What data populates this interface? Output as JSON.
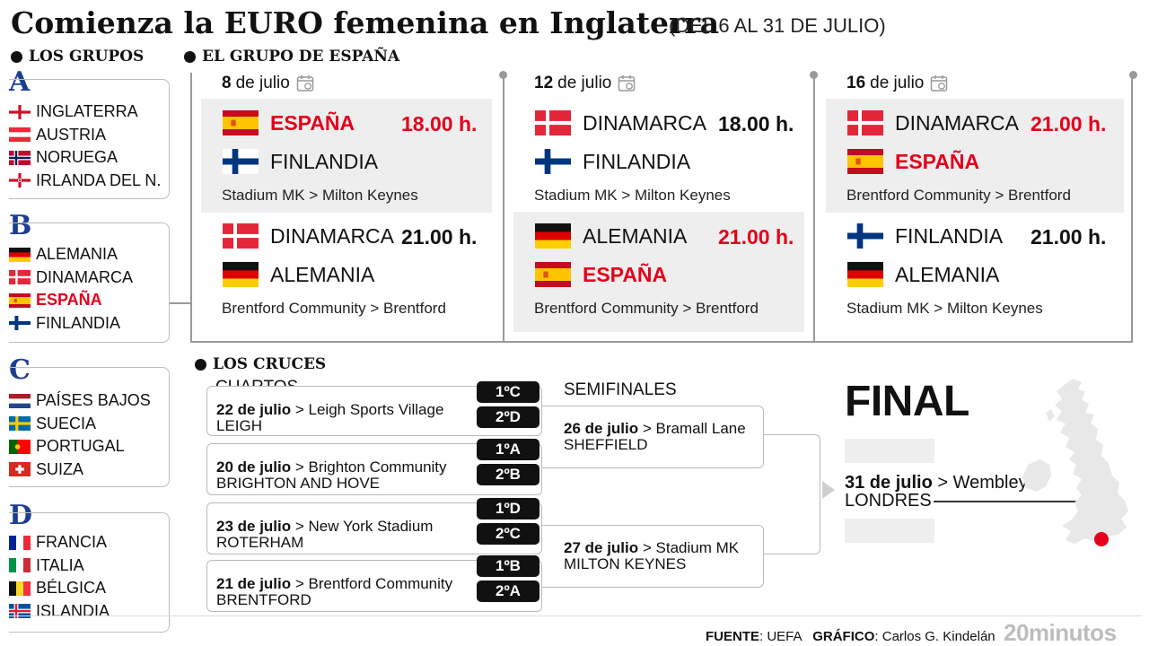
{
  "header": {
    "title": "Comienza la EURO femenina en Inglaterra",
    "subtitle": "(DEL 6 AL 31 DE JULIO)"
  },
  "groups": {
    "section_label": "LOS GRUPOS",
    "list": [
      {
        "letter": "A",
        "teams": [
          {
            "name": "INGLATERRA",
            "flag": "england"
          },
          {
            "name": "AUSTRIA",
            "flag": "austria"
          },
          {
            "name": "NORUEGA",
            "flag": "norway"
          },
          {
            "name": "IRLANDA DEL N.",
            "flag": "northern-ireland"
          }
        ]
      },
      {
        "letter": "B",
        "teams": [
          {
            "name": "ALEMANIA",
            "flag": "germany"
          },
          {
            "name": "DINAMARCA",
            "flag": "denmark"
          },
          {
            "name": "ESPAÑA",
            "flag": "spain",
            "highlight": true
          },
          {
            "name": "FINLANDIA",
            "flag": "finland"
          }
        ]
      },
      {
        "letter": "C",
        "teams": [
          {
            "name": "PAÍSES BAJOS",
            "flag": "netherlands"
          },
          {
            "name": "SUECIA",
            "flag": "sweden"
          },
          {
            "name": "PORTUGAL",
            "flag": "portugal"
          },
          {
            "name": "SUIZA",
            "flag": "switzerland"
          }
        ]
      },
      {
        "letter": "D",
        "teams": [
          {
            "name": "FRANCIA",
            "flag": "france"
          },
          {
            "name": "ITALIA",
            "flag": "italy"
          },
          {
            "name": "BÉLGICA",
            "flag": "belgium"
          },
          {
            "name": "ISLANDIA",
            "flag": "iceland"
          }
        ]
      }
    ]
  },
  "spain_group": {
    "section_label": "EL GRUPO DE ESPAÑA",
    "days": [
      {
        "day": "8",
        "month": "de julio",
        "matches": [
          {
            "home": "ESPAÑA",
            "home_flag": "spain",
            "home_highlight": true,
            "away": "FINLANDIA",
            "away_flag": "finland",
            "time": "18.00 h.",
            "time_red": true,
            "venue": "Stadium MK > Milton Keynes",
            "shaded": true
          },
          {
            "home": "DINAMARCA",
            "home_flag": "denmark",
            "away": "ALEMANIA",
            "away_flag": "germany",
            "time": "21.00 h.",
            "time_red": false,
            "venue": "Brentford Community > Brentford",
            "shaded": false
          }
        ]
      },
      {
        "day": "12",
        "month": "de julio",
        "matches": [
          {
            "home": "DINAMARCA",
            "home_flag": "denmark",
            "away": "FINLANDIA",
            "away_flag": "finland",
            "time": "18.00 h.",
            "time_red": false,
            "venue": "Stadium MK > Milton Keynes",
            "shaded": false
          },
          {
            "home": "ALEMANIA",
            "home_flag": "germany",
            "away": "ESPAÑA",
            "away_flag": "spain",
            "away_highlight": true,
            "time": "21.00 h.",
            "time_red": true,
            "venue": "Brentford Community > Brentford",
            "shaded": true
          }
        ]
      },
      {
        "day": "16",
        "month": "de julio",
        "matches": [
          {
            "home": "DINAMARCA",
            "home_flag": "denmark",
            "away": "ESPAÑA",
            "away_flag": "spain",
            "away_highlight": true,
            "time": "21.00 h.",
            "time_red": true,
            "venue": "Brentford Community > Brentford",
            "shaded": true
          },
          {
            "home": "FINLANDIA",
            "home_flag": "finland",
            "away": "ALEMANIA",
            "away_flag": "germany",
            "time": "21.00 h.",
            "time_red": false,
            "venue": "Stadium MK > Milton Keynes",
            "shaded": false
          }
        ]
      }
    ]
  },
  "knockout": {
    "section_label": "LOS CRUCES",
    "quarters_label": "CUARTOS",
    "semis_label": "SEMIFINALES",
    "quarters": [
      {
        "date": "22 de julio",
        "venue": "> Leigh Sports Village",
        "city": "LEIGH",
        "seed1": "1ºC",
        "seed2": "2ºD"
      },
      {
        "date": "20 de julio",
        "venue": "> Brighton Community",
        "city": "BRIGHTON AND HOVE",
        "seed1": "1ºA",
        "seed2": "2ºB"
      },
      {
        "date": "23 de julio",
        "venue": "> New York Stadium",
        "city": "ROTERHAM",
        "seed1": "1ºD",
        "seed2": "2ºC"
      },
      {
        "date": "21 de julio",
        "venue": "> Brentford Community",
        "city": "BRENTFORD",
        "seed1": "1ºB",
        "seed2": "2ºA"
      }
    ],
    "semis": [
      {
        "date": "26 de julio",
        "venue": "> Bramall Lane",
        "city": "SHEFFIELD"
      },
      {
        "date": "27 de julio",
        "venue": "> Stadium MK",
        "city": "MILTON KEYNES"
      }
    ],
    "final": {
      "label": "FINAL",
      "date": "31 de julio",
      "venue": "> Wembley",
      "city": "LONDRES"
    }
  },
  "footer": {
    "source_label": "FUENTE",
    "source_value": "UEFA",
    "graphic_label": "GRÁFICO",
    "graphic_value": "Carlos G. Kindelán",
    "brand": "20minutos"
  },
  "colors": {
    "accent_red": "#e4001b",
    "group_letter_blue": "#1d3d8f",
    "shade": "#eeeeee"
  }
}
